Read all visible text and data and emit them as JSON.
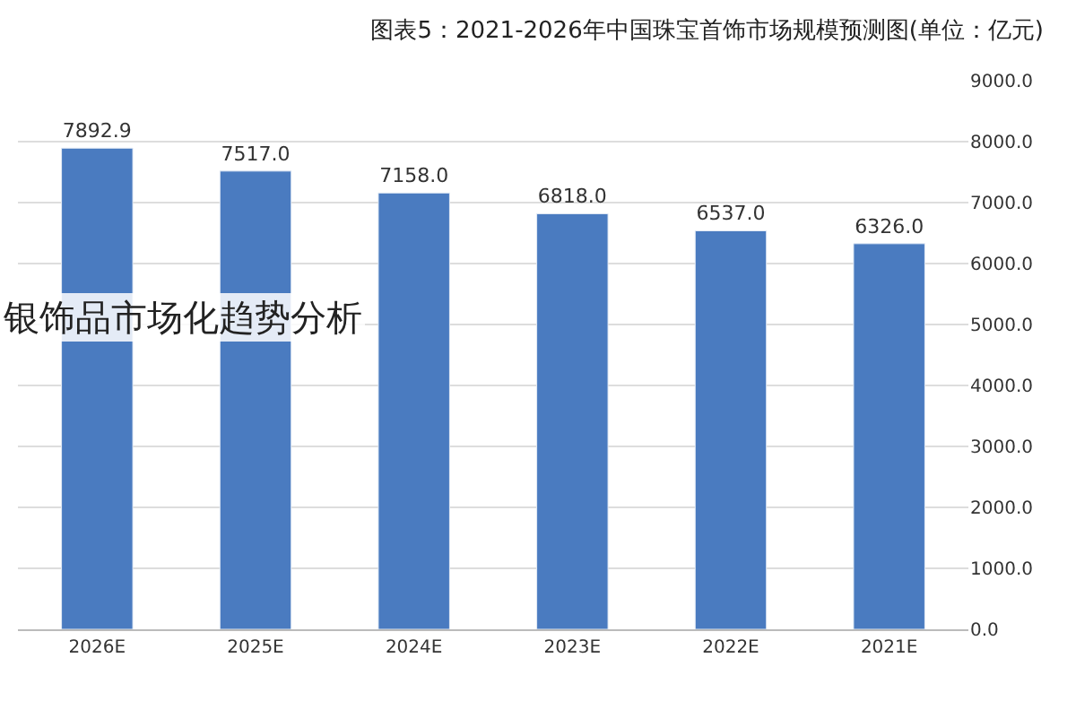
{
  "chart_data": {
    "type": "bar",
    "title": "图表5：2021-2026年中国珠宝首饰市场规模预测图(单位：亿元)",
    "categories": [
      "2026E",
      "2025E",
      "2024E",
      "2023E",
      "2022E",
      "2021E"
    ],
    "values": [
      7892.9,
      7517.0,
      7158.0,
      6818.0,
      6537.0,
      6326.0
    ],
    "value_labels": [
      "7892.9",
      "7517.0",
      "7158.0",
      "6818.0",
      "6537.0",
      "6326.0"
    ],
    "color": "#4a7bc0",
    "ylim": [
      0,
      9000
    ],
    "yticks": [
      {
        "value": 0,
        "label": "0.0"
      },
      {
        "value": 1000,
        "label": "1000.0"
      },
      {
        "value": 2000,
        "label": "2000.0"
      },
      {
        "value": 3000,
        "label": "3000.0"
      },
      {
        "value": 4000,
        "label": "4000.0"
      },
      {
        "value": 5000,
        "label": "5000.0"
      },
      {
        "value": 6000,
        "label": "6000.0"
      },
      {
        "value": 7000,
        "label": "7000.0"
      },
      {
        "value": 8000,
        "label": "8000.0"
      },
      {
        "value": 9000,
        "label": "9000.0"
      }
    ],
    "grid": "y",
    "annotations": [
      "银饰品市场化趋势分析"
    ]
  }
}
